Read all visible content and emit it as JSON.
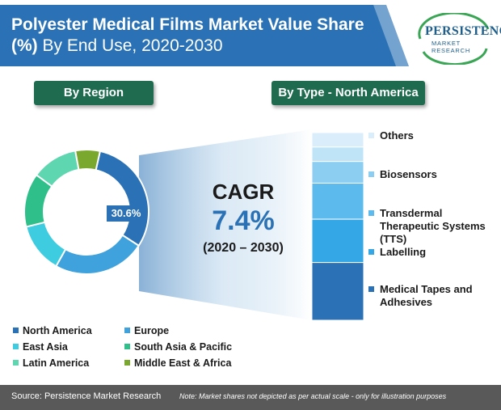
{
  "header": {
    "title_bold": "Polyester Medical Films Market Value Share (%)",
    "title_light": "By End Use, 2020-2030",
    "logo_word": "PERSISTENCE",
    "logo_sub": "MARKET RESEARCH",
    "header_color": "#2a72b5"
  },
  "panels": {
    "left_title": "By Region",
    "right_title": "By Type - North America"
  },
  "cagr": {
    "label": "CAGR",
    "value": "7.4%",
    "period": "(2020 – 2030)"
  },
  "chart_data": [
    {
      "type": "pie",
      "variant": "donut",
      "title": "By Region",
      "categories": [
        "North America",
        "Europe",
        "East Asia",
        "South Asia & Pacific",
        "Latin America",
        "Middle East & Africa"
      ],
      "values": [
        30.6,
        24,
        13,
        14,
        12,
        6.4
      ],
      "value_labels": [
        "30.6%",
        "",
        "",
        "",
        "",
        ""
      ],
      "colors": [
        "#2a72b5",
        "#3fa2dc",
        "#3ecde0",
        "#2ebf8a",
        "#5ed6b0",
        "#7aa82e"
      ],
      "legend": "bottom"
    },
    {
      "type": "bar",
      "variant": "stacked-100",
      "title": "By Type - North America",
      "categories": [
        "Others",
        "",
        "Biosensors",
        "Transdermal Therapeutic Systems (TTS)",
        "Labelling",
        "Medical Tapes and Adhesives"
      ],
      "values": [
        4,
        4,
        6,
        10,
        12,
        16
      ],
      "colors": [
        "#d9eefa",
        "#c0e4f7",
        "#8ccef2",
        "#5cbbec",
        "#34a7e6",
        "#2a72b5"
      ],
      "legend": "right"
    }
  ],
  "footer": {
    "source": "Source: Persistence Market Research",
    "note": "Note: Market shares not depicted as per actual scale - only for illustration purposes"
  }
}
